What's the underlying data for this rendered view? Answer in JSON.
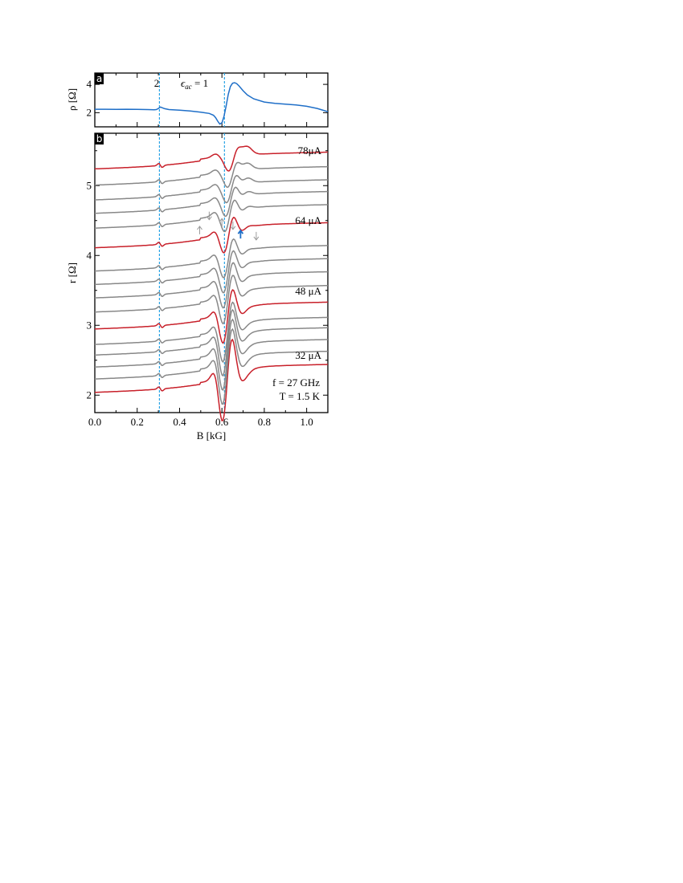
{
  "chart_data": [
    {
      "panel": "a",
      "type": "line",
      "ylabel": "ρ [Ω]",
      "xlim": [
        0,
        1.1
      ],
      "ylim": [
        1,
        4.8
      ],
      "yticks": [
        2,
        4
      ],
      "annotations": {
        "line_2": "2",
        "eps_label": "ϵ",
        "eps_sub": "ac",
        "eps_tail": " = 1"
      },
      "vlines": [
        0.305,
        0.612
      ],
      "series": [
        {
          "color": "#1f6fc8",
          "x": [
            0.0,
            0.05,
            0.1,
            0.15,
            0.2,
            0.25,
            0.28,
            0.29,
            0.3,
            0.31,
            0.32,
            0.33,
            0.35,
            0.4,
            0.45,
            0.5,
            0.54,
            0.56,
            0.57,
            0.58,
            0.59,
            0.6,
            0.61,
            0.62,
            0.63,
            0.64,
            0.65,
            0.66,
            0.67,
            0.68,
            0.7,
            0.72,
            0.75,
            0.8,
            0.85,
            0.9,
            0.95,
            1.0,
            1.05,
            1.1
          ],
          "y": [
            2.24,
            2.24,
            2.23,
            2.24,
            2.23,
            2.22,
            2.2,
            2.22,
            2.3,
            2.4,
            2.34,
            2.28,
            2.22,
            2.18,
            2.12,
            2.04,
            1.95,
            1.82,
            1.65,
            1.4,
            1.2,
            1.28,
            1.75,
            2.5,
            3.3,
            3.85,
            4.08,
            4.12,
            4.05,
            3.9,
            3.55,
            3.25,
            2.98,
            2.75,
            2.66,
            2.6,
            2.55,
            2.45,
            2.3,
            2.07
          ]
        }
      ]
    },
    {
      "panel": "b",
      "type": "line",
      "xlabel": "B [kG]",
      "ylabel": "r [Ω]",
      "xlim": [
        0,
        1.1
      ],
      "ylim": [
        1.75,
        5.75
      ],
      "xticks": [
        "0.0",
        "0.2",
        "0.4",
        "0.6",
        "0.8",
        "1.0"
      ],
      "yticks": [
        2,
        3,
        4,
        5
      ],
      "vlines": [
        0.305,
        0.612
      ],
      "labels": {
        "l78": "78μA",
        "l64": "64 μA",
        "l48": "48 μA",
        "l32": "32 μA",
        "freq": "f = 27 GHz",
        "temp": "T = 1.5 K"
      },
      "arrows": [
        {
          "x": 0.495,
          "y": 4.36,
          "dir": "up",
          "color": "#9a9a9a"
        },
        {
          "x": 0.54,
          "y": 4.57,
          "dir": "down",
          "color": "#9a9a9a"
        },
        {
          "x": 0.6,
          "y": 4.47,
          "dir": "up",
          "color": "#9a9a9a"
        },
        {
          "x": 0.652,
          "y": 4.43,
          "dir": "down",
          "color": "#9a9a9a"
        },
        {
          "x": 0.688,
          "y": 4.3,
          "dir": "up",
          "color": "#1f6fc8"
        },
        {
          "x": 0.762,
          "y": 4.28,
          "dir": "down",
          "color": "#9a9a9a"
        }
      ],
      "series": [
        {
          "current_uA": 32,
          "baseline": 2.3,
          "amplitude": 1.0,
          "phase": 0.0,
          "color": "#c8202a"
        },
        {
          "baseline": 2.49,
          "amplitude": 0.92,
          "phase": 0.02,
          "color": "#888888"
        },
        {
          "baseline": 2.66,
          "amplitude": 0.86,
          "phase": 0.04,
          "color": "#888888"
        },
        {
          "baseline": 2.83,
          "amplitude": 0.8,
          "phase": 0.06,
          "color": "#888888"
        },
        {
          "baseline": 2.98,
          "amplitude": 0.72,
          "phase": 0.08,
          "color": "#888888"
        },
        {
          "current_uA": 48,
          "baseline": 3.2,
          "amplitude": 0.64,
          "phase": 0.1,
          "color": "#c8202a"
        },
        {
          "baseline": 3.44,
          "amplitude": 0.58,
          "phase": 0.13,
          "color": "#888888"
        },
        {
          "baseline": 3.64,
          "amplitude": 0.54,
          "phase": 0.16,
          "color": "#888888"
        },
        {
          "baseline": 3.83,
          "amplitude": 0.5,
          "phase": 0.19,
          "color": "#888888"
        },
        {
          "baseline": 4.02,
          "amplitude": 0.46,
          "phase": 0.22,
          "color": "#888888"
        },
        {
          "current_uA": 64,
          "baseline": 4.35,
          "amplitude": 0.42,
          "phase": 0.26,
          "color": "#c8202a"
        },
        {
          "baseline": 4.62,
          "amplitude": 0.38,
          "phase": 0.4,
          "color": "#888888"
        },
        {
          "baseline": 4.82,
          "amplitude": 0.36,
          "phase": 0.55,
          "color": "#888888"
        },
        {
          "baseline": 5.0,
          "amplitude": 0.35,
          "phase": 0.7,
          "color": "#888888"
        },
        {
          "baseline": 5.2,
          "amplitude": 0.33,
          "phase": 0.85,
          "color": "#888888"
        },
        {
          "current_uA": 78,
          "baseline": 5.42,
          "amplitude": 0.32,
          "phase": 1.0,
          "color": "#c8202a"
        }
      ]
    }
  ]
}
